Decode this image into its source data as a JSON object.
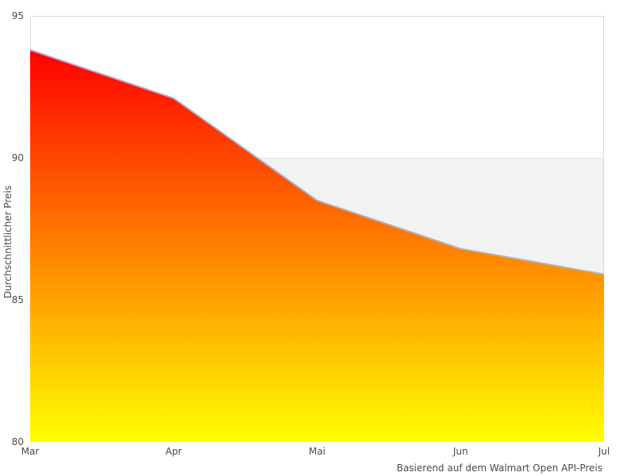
{
  "chart_data": {
    "type": "area",
    "categories": [
      "Mar",
      "Apr",
      "Mai",
      "Jun",
      "Jul"
    ],
    "values": [
      93.8,
      92.1,
      88.5,
      86.8,
      85.9
    ],
    "ylabel": "Durchschnittlicher Preis",
    "xlabel": "Basierend auf dem Walmart Open API-Preis",
    "ylim": [
      80,
      95
    ],
    "yticks": [
      80,
      85,
      90,
      95
    ],
    "legend": "none",
    "grid": "alternating horizontal bands",
    "bands": [
      {
        "from": 85,
        "to": 90,
        "color": "#f2f2f2"
      }
    ],
    "colors": {
      "gradient_top": "#ff0000",
      "gradient_bottom": "#ffff00",
      "line": "#9cb8d8",
      "band_edge": "#e4e4e4",
      "plot_border": "#d9d9d9",
      "axis_text": "#4a4a4a",
      "background": "#ffffff"
    }
  }
}
